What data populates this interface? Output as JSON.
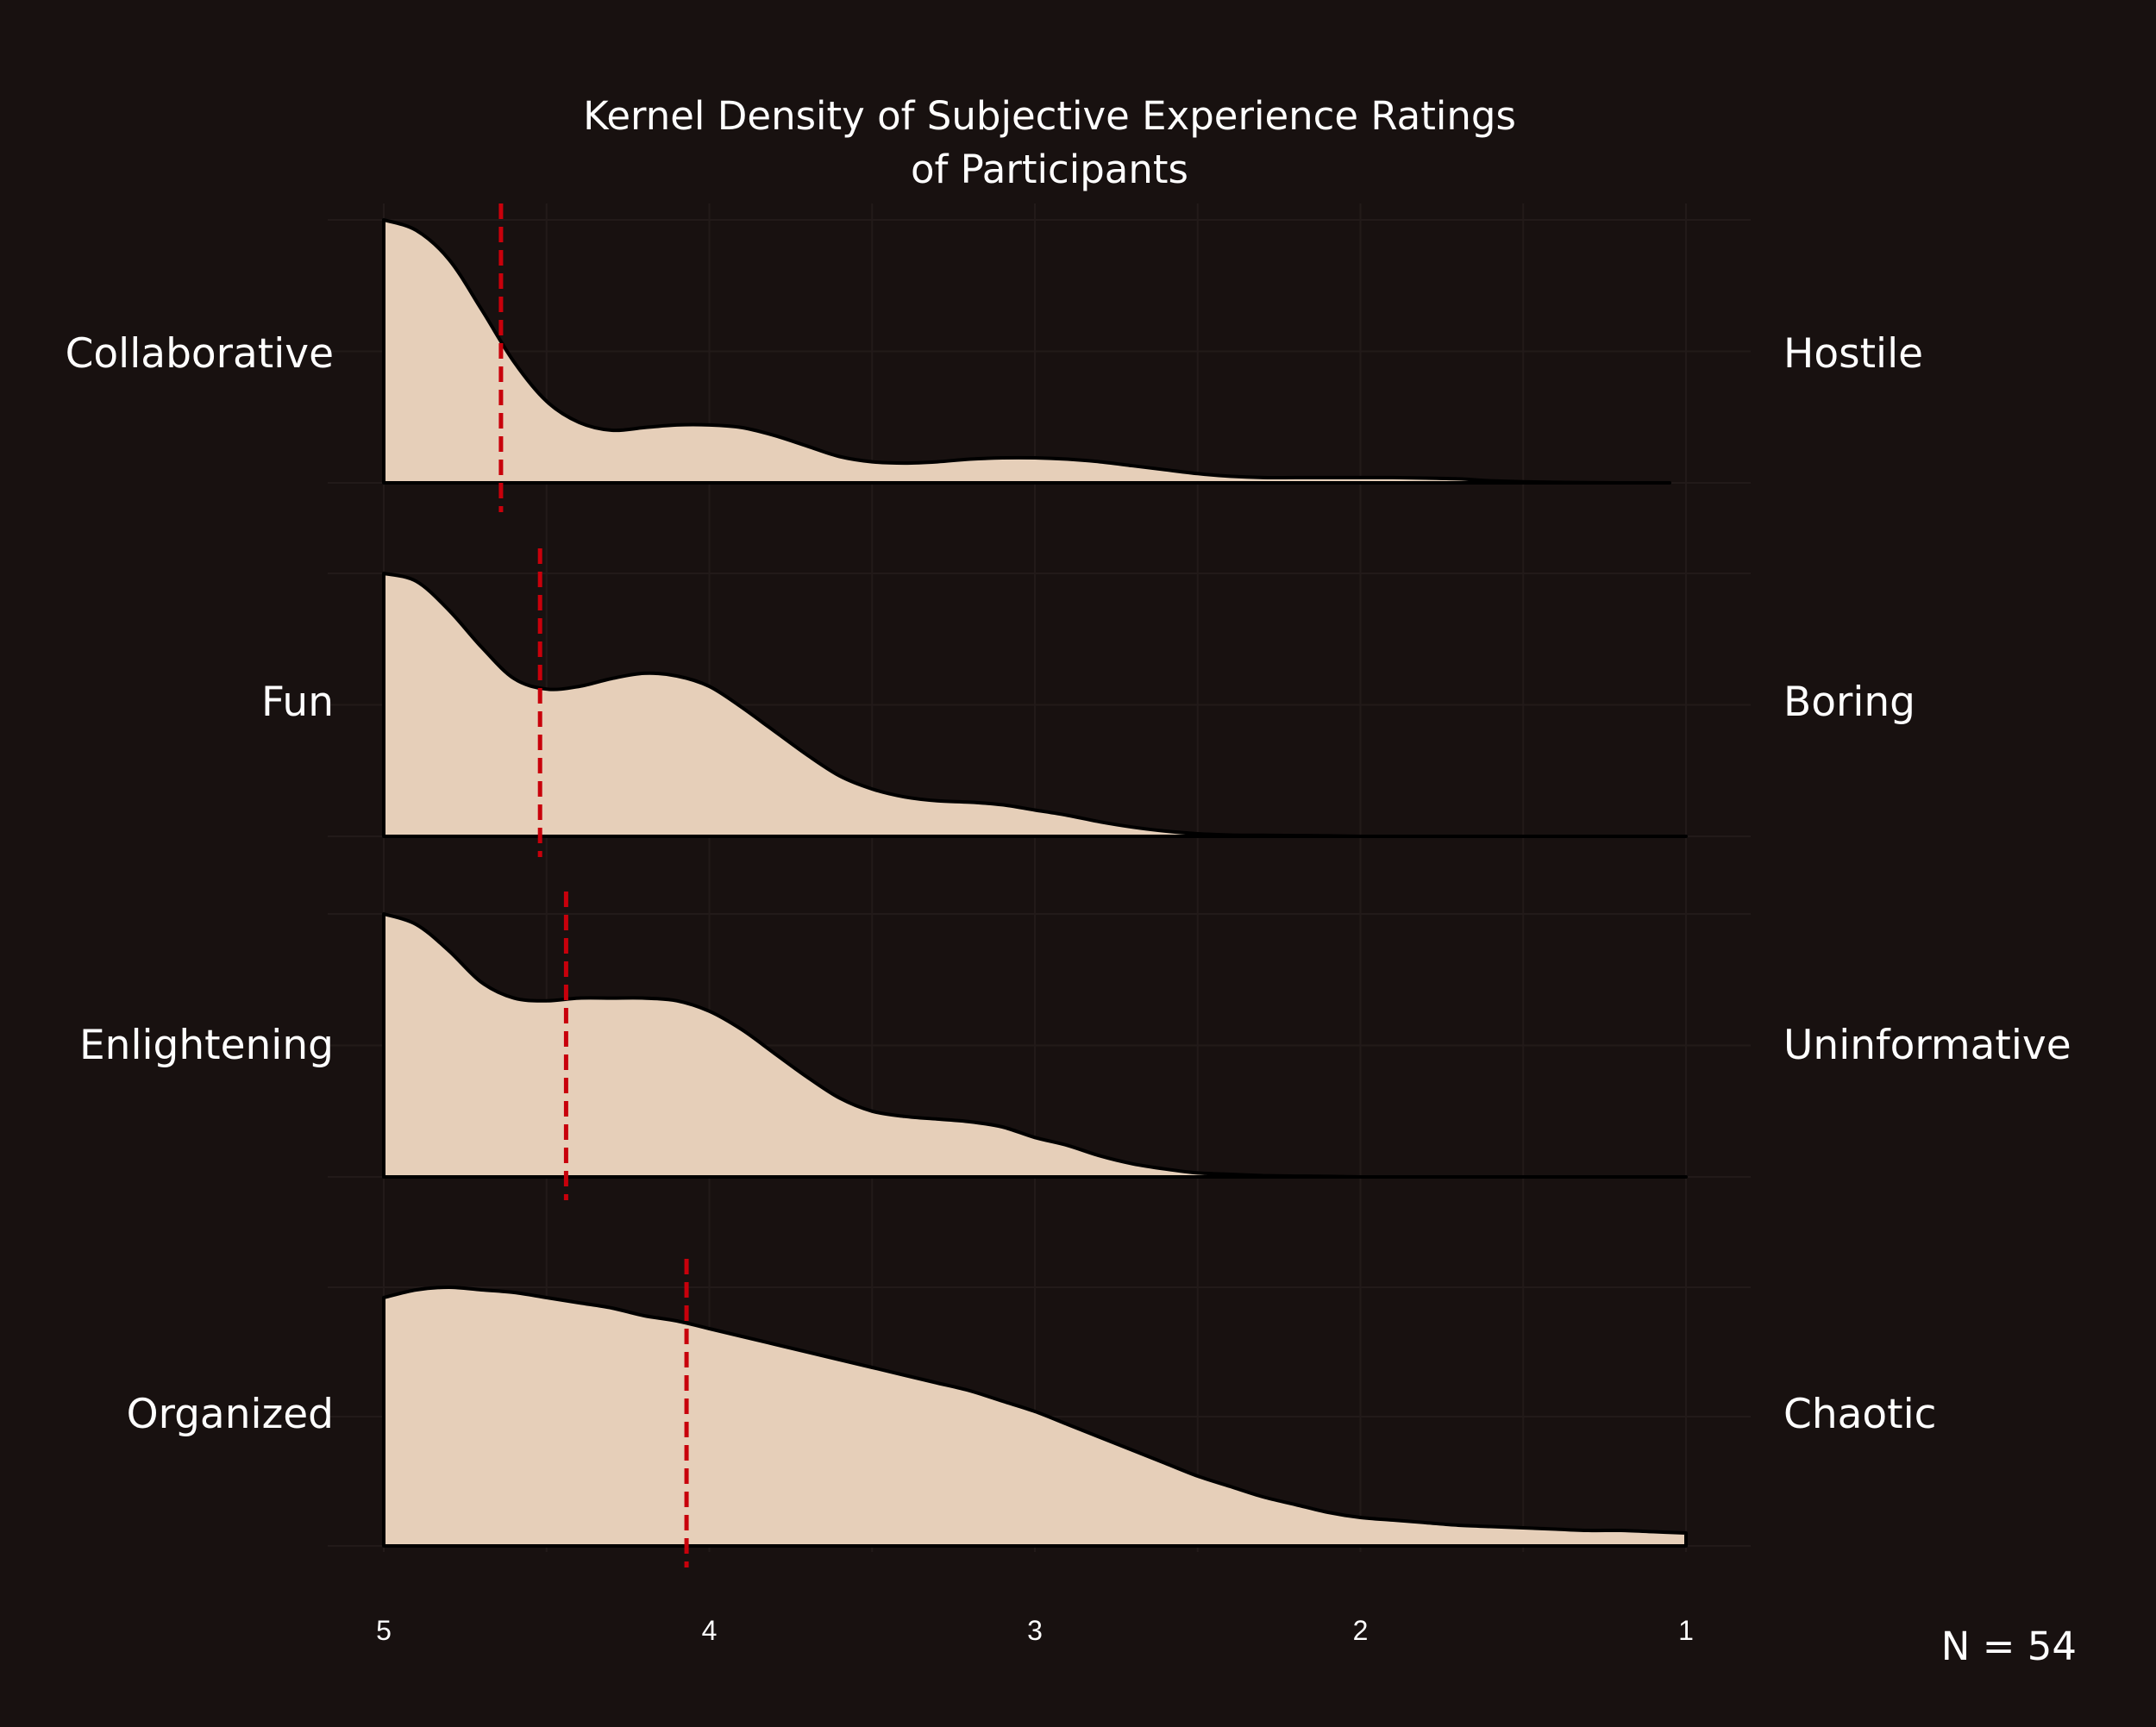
{
  "chart_data": {
    "type": "area",
    "title_lines": [
      "Kernel Density of Subjective Experience Ratings",
      "of Participants"
    ],
    "x_ticks": [
      "5",
      "4",
      "3",
      "2",
      "1"
    ],
    "xlim": [
      5,
      1
    ],
    "grid": true,
    "fill_color": "#e6cfb9",
    "outline_color": "#000000",
    "mean_line_color": "#c8000b",
    "annotation": "N = 54",
    "series": [
      {
        "left_label": "Collaborative",
        "right_label": "Hostile",
        "mean": 4.64,
        "x": [
          5.0,
          4.9,
          4.8,
          4.7,
          4.6,
          4.5,
          4.4,
          4.3,
          4.2,
          4.1,
          4.0,
          3.9,
          3.8,
          3.7,
          3.6,
          3.5,
          3.4,
          3.3,
          3.2,
          3.1,
          3.0,
          2.9,
          2.8,
          2.7,
          2.6,
          2.5,
          2.4,
          2.3,
          2.2,
          2.1,
          2.0,
          1.9,
          1.8,
          1.7,
          1.6,
          1.5,
          1.4,
          1.3,
          1.2,
          1.1,
          1.05
        ],
        "density": [
          1.0,
          0.96,
          0.85,
          0.66,
          0.46,
          0.31,
          0.23,
          0.2,
          0.21,
          0.22,
          0.22,
          0.21,
          0.18,
          0.14,
          0.1,
          0.08,
          0.075,
          0.08,
          0.09,
          0.095,
          0.095,
          0.09,
          0.08,
          0.065,
          0.05,
          0.035,
          0.025,
          0.02,
          0.02,
          0.02,
          0.02,
          0.02,
          0.018,
          0.015,
          0.008,
          0.004,
          0.002,
          0.001,
          0.0,
          0.0,
          0.0
        ]
      },
      {
        "left_label": "Fun",
        "right_label": "Boring",
        "mean": 4.52,
        "x": [
          5.0,
          4.9,
          4.8,
          4.7,
          4.6,
          4.5,
          4.4,
          4.3,
          4.2,
          4.1,
          4.0,
          3.9,
          3.8,
          3.7,
          3.6,
          3.5,
          3.4,
          3.3,
          3.2,
          3.1,
          3.0,
          2.9,
          2.8,
          2.7,
          2.6,
          2.5,
          2.4,
          2.3,
          2.2,
          2.1,
          2.0,
          1.9,
          1.8,
          1.7,
          1.6,
          1.5,
          1.4,
          1.3,
          1.2,
          1.1,
          1.0
        ],
        "density": [
          1.0,
          0.97,
          0.86,
          0.72,
          0.6,
          0.56,
          0.57,
          0.6,
          0.62,
          0.61,
          0.57,
          0.49,
          0.4,
          0.31,
          0.23,
          0.18,
          0.15,
          0.135,
          0.13,
          0.12,
          0.1,
          0.08,
          0.055,
          0.035,
          0.02,
          0.01,
          0.005,
          0.004,
          0.003,
          0.002,
          0.0,
          0.0,
          0.0,
          0.0,
          0.0,
          0.0,
          0.0,
          0.0,
          0.0,
          0.0,
          0.0
        ]
      },
      {
        "left_label": "Enlightening",
        "right_label": "Uninformative",
        "mean": 4.44,
        "x": [
          5.0,
          4.9,
          4.8,
          4.7,
          4.6,
          4.5,
          4.4,
          4.3,
          4.2,
          4.1,
          4.0,
          3.9,
          3.8,
          3.7,
          3.6,
          3.5,
          3.4,
          3.3,
          3.2,
          3.1,
          3.0,
          2.9,
          2.8,
          2.7,
          2.6,
          2.5,
          2.4,
          2.3,
          2.2,
          2.1,
          2.0,
          1.9,
          1.8,
          1.7,
          1.6,
          1.5,
          1.4,
          1.3,
          1.2,
          1.1,
          1.0
        ],
        "density": [
          1.0,
          0.96,
          0.86,
          0.74,
          0.68,
          0.67,
          0.68,
          0.68,
          0.68,
          0.67,
          0.63,
          0.56,
          0.47,
          0.38,
          0.3,
          0.25,
          0.23,
          0.22,
          0.21,
          0.19,
          0.15,
          0.12,
          0.08,
          0.05,
          0.03,
          0.015,
          0.01,
          0.005,
          0.003,
          0.002,
          0.0,
          0.0,
          0.0,
          0.0,
          0.0,
          0.0,
          0.0,
          0.0,
          0.0,
          0.0,
          0.0
        ]
      },
      {
        "left_label": "Organized",
        "right_label": "Chaotic",
        "mean": 4.07,
        "x": [
          5.0,
          4.9,
          4.8,
          4.7,
          4.6,
          4.5,
          4.4,
          4.3,
          4.2,
          4.1,
          4.0,
          3.9,
          3.8,
          3.7,
          3.6,
          3.5,
          3.4,
          3.3,
          3.2,
          3.1,
          3.0,
          2.9,
          2.8,
          2.7,
          2.6,
          2.5,
          2.4,
          2.3,
          2.2,
          2.1,
          2.0,
          1.9,
          1.8,
          1.7,
          1.6,
          1.5,
          1.4,
          1.3,
          1.2,
          1.1,
          1.0
        ],
        "density": [
          0.96,
          0.99,
          1.0,
          0.99,
          0.98,
          0.96,
          0.94,
          0.92,
          0.89,
          0.87,
          0.84,
          0.81,
          0.78,
          0.75,
          0.72,
          0.69,
          0.66,
          0.63,
          0.6,
          0.56,
          0.52,
          0.47,
          0.42,
          0.37,
          0.32,
          0.27,
          0.23,
          0.19,
          0.16,
          0.13,
          0.11,
          0.1,
          0.09,
          0.08,
          0.075,
          0.07,
          0.065,
          0.06,
          0.06,
          0.055,
          0.05
        ]
      }
    ]
  }
}
